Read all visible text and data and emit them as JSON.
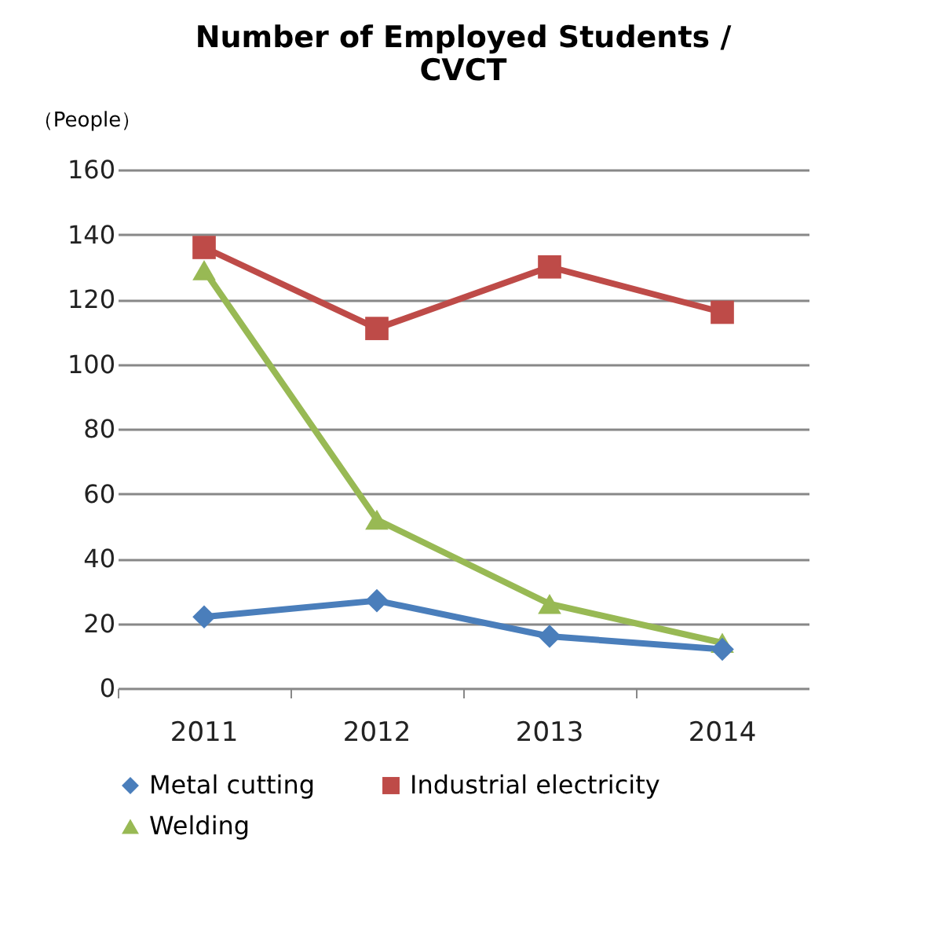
{
  "chart_data": {
    "type": "line",
    "title": "Number of Employed Students / CVCT",
    "ylabel": "（People）",
    "categories": [
      "2011",
      "2012",
      "2013",
      "2014"
    ],
    "series": [
      {
        "name": "Metal cutting",
        "color": "#4a7ebb",
        "marker": "diamond",
        "values": [
          22,
          27,
          16,
          12
        ]
      },
      {
        "name": "Industrial electricity",
        "color": "#be4b48",
        "marker": "square",
        "values": [
          136,
          111,
          130,
          116
        ]
      },
      {
        "name": "Welding",
        "color": "#98b954",
        "marker": "triangle",
        "values": [
          129,
          52,
          26,
          14
        ]
      }
    ],
    "ylim": [
      0,
      160
    ],
    "yticks": [
      0,
      20,
      40,
      60,
      80,
      100,
      120,
      140,
      160
    ],
    "grid": "y",
    "legend": "bottom"
  }
}
